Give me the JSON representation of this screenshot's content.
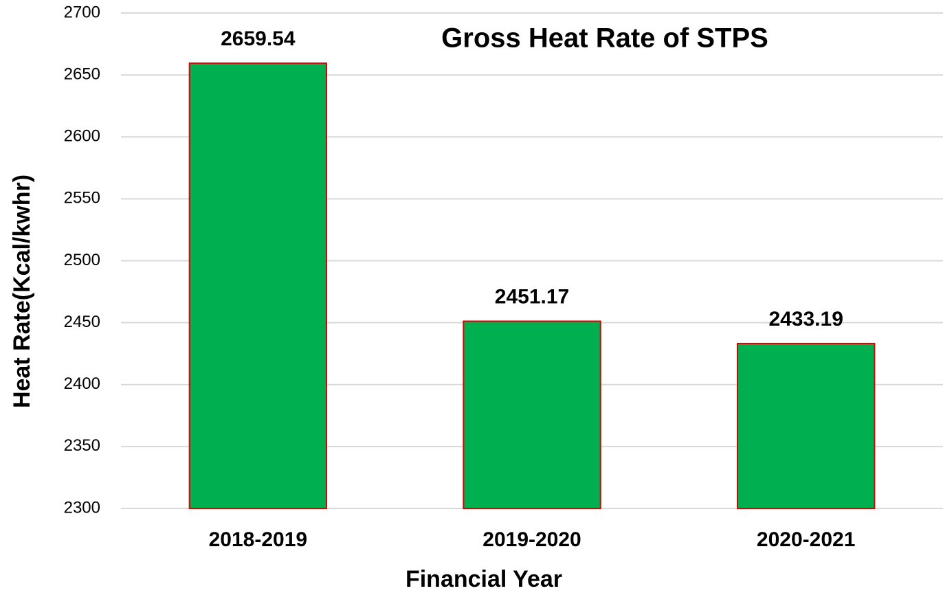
{
  "chart_data": {
    "type": "bar",
    "title": "Gross Heat Rate of STPS",
    "x_label": "Financial Year",
    "y_label": "Heat Rate(Kcal/kwhr)",
    "categories": [
      "2018-2019",
      "2019-2020",
      "2020-2021"
    ],
    "values": [
      2659.54,
      2451.17,
      2433.19
    ],
    "color": "#00b050",
    "edge_color": "#e00000",
    "ylim": [
      2300,
      2700
    ],
    "yticks": [
      2300,
      2350,
      2400,
      2450,
      2500,
      2550,
      2600,
      2650,
      2700
    ],
    "grid": true
  }
}
